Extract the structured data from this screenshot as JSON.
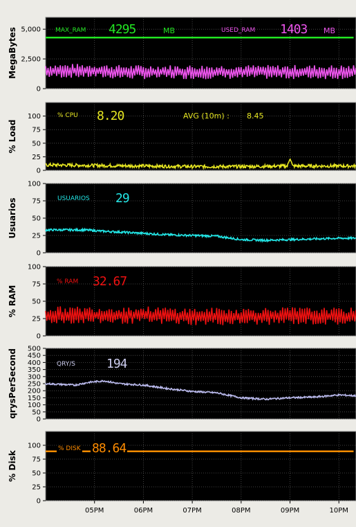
{
  "window": {
    "background": "#ecebe6"
  },
  "readouts": {
    "max_ram_label": "MAX_RAM",
    "max_ram_value": "4295",
    "max_ram_unit": "MB",
    "used_ram_label": "USED_RAM",
    "used_ram_value": "1403",
    "used_ram_unit": "MB",
    "cpu_label": "% CPU",
    "cpu_value": "8.20",
    "avg_label": "AVG (10m) :",
    "avg_value": "8.45",
    "users_label": "USUARIOS",
    "users_value": "29",
    "ram_pct_label": "% RAM",
    "ram_pct_value": "32.67",
    "qps_label": "QRY/S",
    "qps_value": "194",
    "disk_label": "% DISK",
    "disk_value": "88.64"
  },
  "chart_data": [
    {
      "type": "line",
      "ylabel": "MegaBytes",
      "ylim": [
        0,
        6000
      ],
      "ytick_labels": [
        "0",
        "2,500",
        "5,000"
      ],
      "ytick_values": [
        0,
        2500,
        5000
      ],
      "grid": true,
      "series": [
        {
          "name": "MAX_RAM",
          "color": "#22e622",
          "values": [
            [
              0,
              4295
            ],
            [
              6.3,
              4295
            ]
          ]
        },
        {
          "name": "USED_RAM",
          "color": "#ee55ee",
          "pattern": "oscillate",
          "period": 0.05,
          "amplitude": 800,
          "values": [
            [
              0,
              1500
            ],
            [
              1,
              1500
            ],
            [
              1.5,
              1400
            ],
            [
              2,
              1400
            ],
            [
              3,
              1400
            ],
            [
              4,
              1400
            ],
            [
              5,
              1400
            ],
            [
              6,
              1400
            ],
            [
              6.3,
              1400
            ]
          ]
        }
      ]
    },
    {
      "type": "line",
      "ylabel": "% Load",
      "ylim": [
        0,
        125
      ],
      "ytick_labels": [
        "0",
        "25",
        "50",
        "75",
        "100"
      ],
      "ytick_values": [
        0,
        25,
        50,
        75,
        100
      ],
      "grid": true,
      "series": [
        {
          "name": "% CPU",
          "color": "#e6e622",
          "pattern": "noise",
          "amplitude": 3,
          "values": [
            [
              0,
              10
            ],
            [
              1,
              9
            ],
            [
              2,
              8
            ],
            [
              3,
              7
            ],
            [
              4,
              7
            ],
            [
              4.95,
              8
            ],
            [
              5.0,
              24
            ],
            [
              5.05,
              8
            ],
            [
              6,
              8
            ],
            [
              6.3,
              8
            ]
          ]
        }
      ]
    },
    {
      "type": "line",
      "ylabel": "Usuarios",
      "ylim": [
        0,
        100
      ],
      "ytick_labels": [
        "0",
        "25",
        "50",
        "75",
        "100"
      ],
      "ytick_values": [
        0,
        25,
        50,
        75,
        100
      ],
      "grid": true,
      "series": [
        {
          "name": "USUARIOS",
          "color": "#22e6e6",
          "pattern": "noise",
          "amplitude": 1.5,
          "values": [
            [
              0,
              33
            ],
            [
              0.8,
              33
            ],
            [
              1.2,
              31
            ],
            [
              1.5,
              30
            ],
            [
              2,
              28
            ],
            [
              2.5,
              26
            ],
            [
              3,
              25
            ],
            [
              3.5,
              24
            ],
            [
              4,
              19
            ],
            [
              4.5,
              18
            ],
            [
              5,
              19
            ],
            [
              5.5,
              20
            ],
            [
              6,
              21
            ],
            [
              6.3,
              21
            ]
          ]
        }
      ]
    },
    {
      "type": "line",
      "ylabel": "% RAM",
      "ylim": [
        0,
        100
      ],
      "ytick_labels": [
        "0",
        "25",
        "50",
        "75",
        "100"
      ],
      "ytick_values": [
        0,
        25,
        50,
        75,
        100
      ],
      "grid": true,
      "series": [
        {
          "name": "% RAM",
          "color": "#ee1111",
          "pattern": "oscillate",
          "period": 0.05,
          "amplitude": 17,
          "values": [
            [
              0,
              30
            ],
            [
              1,
              30
            ],
            [
              2,
              30
            ],
            [
              3,
              28
            ],
            [
              4,
              28
            ],
            [
              5,
              29
            ],
            [
              6,
              28
            ],
            [
              6.3,
              28
            ]
          ]
        }
      ]
    },
    {
      "type": "line",
      "ylabel": "qrysPerSecond",
      "ylim": [
        0,
        500
      ],
      "ytick_labels": [
        "0",
        "50",
        "100",
        "150",
        "200",
        "250",
        "300",
        "350",
        "400",
        "450",
        "500"
      ],
      "ytick_values": [
        0,
        50,
        100,
        150,
        200,
        250,
        300,
        350,
        400,
        450,
        500
      ],
      "grid": true,
      "series": [
        {
          "name": "QRY/S",
          "color": "#bbbbee",
          "pattern": "noise",
          "amplitude": 6,
          "values": [
            [
              0,
              250
            ],
            [
              0.6,
              240
            ],
            [
              0.9,
              260
            ],
            [
              1.2,
              270
            ],
            [
              1.5,
              250
            ],
            [
              2,
              240
            ],
            [
              2.5,
              215
            ],
            [
              3,
              195
            ],
            [
              3.5,
              185
            ],
            [
              4,
              150
            ],
            [
              4.5,
              140
            ],
            [
              5,
              150
            ],
            [
              5.5,
              155
            ],
            [
              6,
              170
            ],
            [
              6.3,
              165
            ]
          ]
        }
      ]
    },
    {
      "type": "line",
      "ylabel": "% Disk",
      "ylim": [
        0,
        125
      ],
      "ytick_labels": [
        "0",
        "25",
        "50",
        "75",
        "100"
      ],
      "ytick_values": [
        0,
        25,
        50,
        75,
        100
      ],
      "grid": true,
      "xtick_labels": [
        "05PM",
        "06PM",
        "07PM",
        "08PM",
        "09PM",
        "10PM"
      ],
      "xtick_values": [
        1,
        2,
        3,
        4,
        5,
        6
      ],
      "series": [
        {
          "name": "% DISK",
          "color": "#ff8c00",
          "values": [
            [
              0,
              89
            ],
            [
              6.3,
              89
            ]
          ]
        }
      ]
    }
  ]
}
